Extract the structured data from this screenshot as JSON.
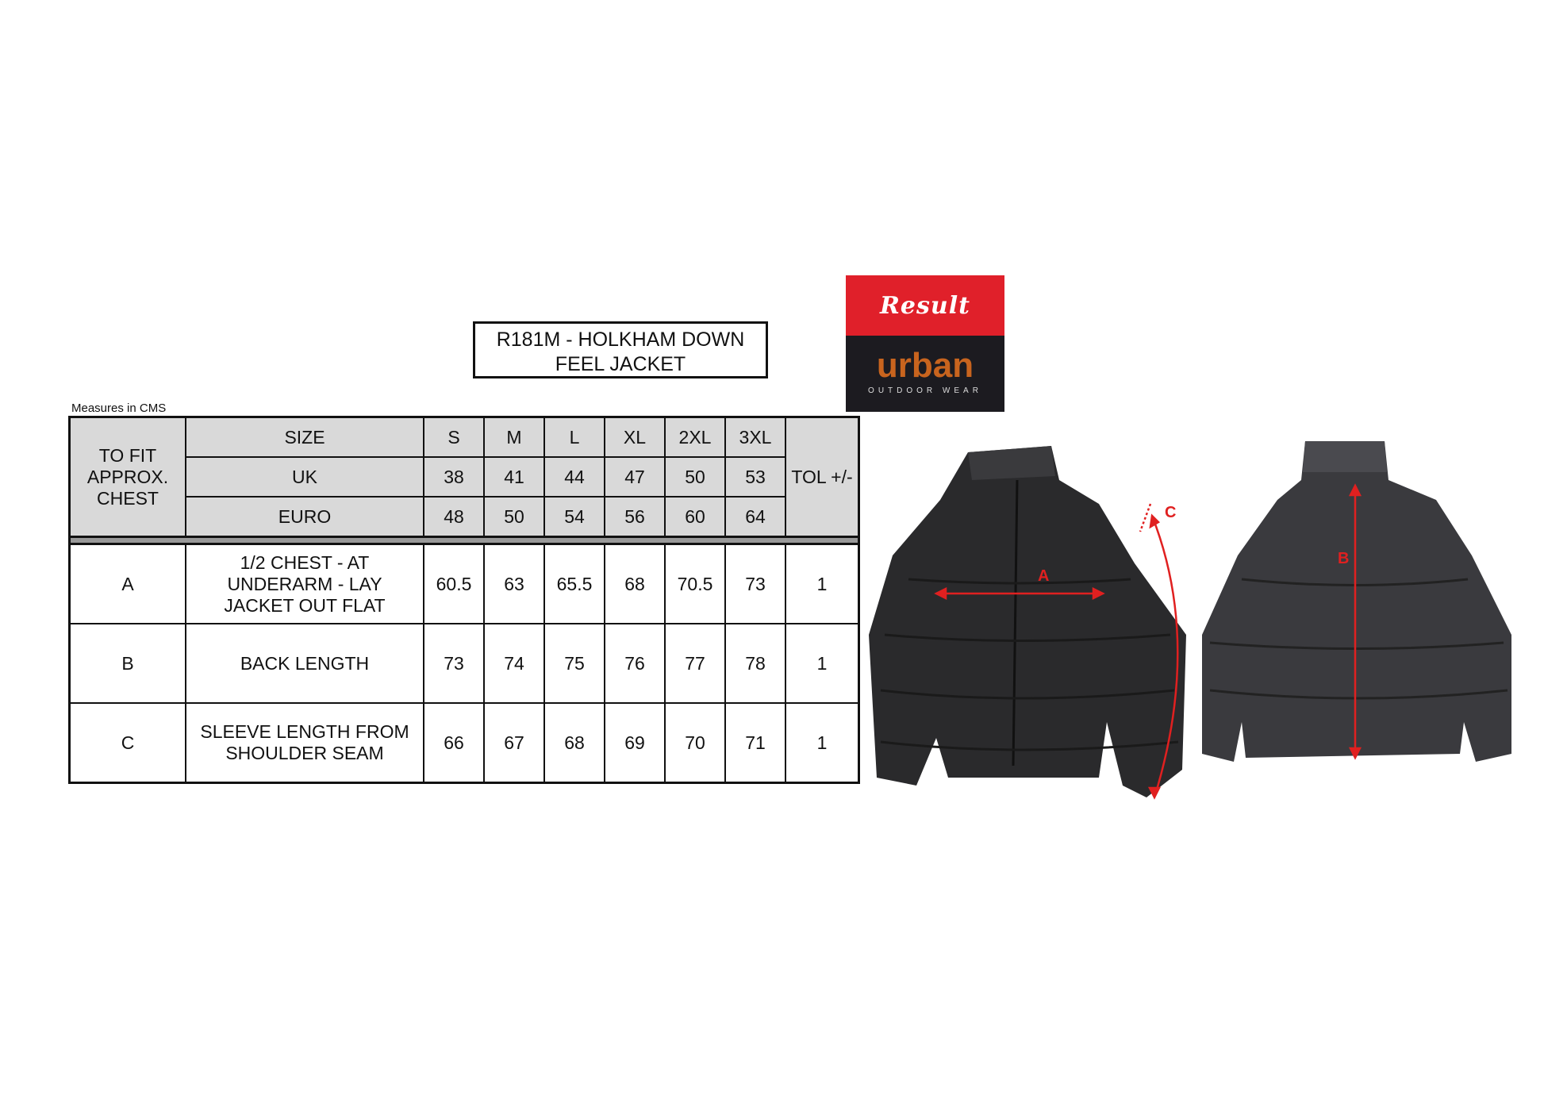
{
  "title": "R181M - HOLKHAM DOWN FEEL JACKET",
  "title_lines": [
    "R181M - HOLKHAM DOWN",
    "FEEL JACKET"
  ],
  "measures_note": "Measures in CMS",
  "header": {
    "fit_label": "TO FIT APPROX. CHEST",
    "size_label": "SIZE",
    "uk_label": "UK",
    "euro_label": "EURO",
    "tol_label": "TOL +/-",
    "sizes": [
      "S",
      "M",
      "L",
      "XL",
      "2XL",
      "3XL"
    ],
    "uk": [
      "38",
      "41",
      "44",
      "47",
      "50",
      "53"
    ],
    "euro": [
      "48",
      "50",
      "54",
      "56",
      "60",
      "64"
    ]
  },
  "rows": [
    {
      "code": "A",
      "desc": "1/2 CHEST - AT UNDERARM - LAY JACKET OUT FLAT",
      "values": [
        "60.5",
        "63",
        "65.5",
        "68",
        "70.5",
        "73"
      ],
      "tol": "1"
    },
    {
      "code": "B",
      "desc": "BACK LENGTH",
      "values": [
        "73",
        "74",
        "75",
        "76",
        "77",
        "78"
      ],
      "tol": "1"
    },
    {
      "code": "C",
      "desc": "SLEEVE LENGTH FROM SHOULDER SEAM",
      "values": [
        "66",
        "67",
        "68",
        "69",
        "70",
        "71"
      ],
      "tol": "1"
    }
  ],
  "logo": {
    "brand": "Result",
    "line": "urban",
    "sub": "OUTDOOR WEAR",
    "colors": {
      "red": "#e0202a",
      "dark": "#1c1b20",
      "orange": "#c8641e"
    }
  },
  "diagram": {
    "labels": [
      "A",
      "B",
      "C"
    ],
    "arrow_color": "#e02020"
  }
}
